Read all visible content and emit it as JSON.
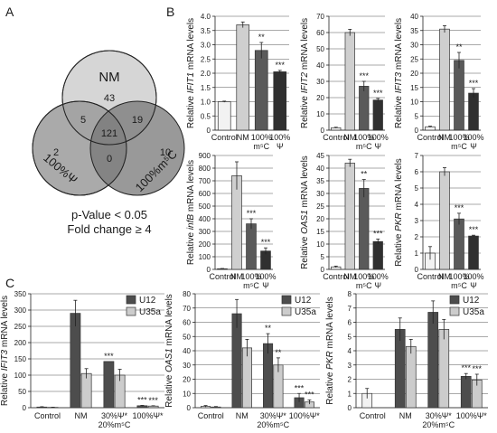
{
  "panels": {
    "A": {
      "letter": "A",
      "sets": [
        {
          "name": "NM",
          "color": "#d4d4d4"
        },
        {
          "name": "100%Ψ",
          "color": "#9a9a9a"
        },
        {
          "name": "100%m⁵C",
          "color": "#7a7a7a"
        }
      ],
      "regions": {
        "nm_only": "43",
        "nm_psi": "5",
        "nm_m5c": "19",
        "all": "121",
        "psi_only": "2",
        "psi_m5c": "0",
        "m5c_only": "10"
      },
      "caption1": "p-Value < 0.05",
      "caption2": "Fold change ≥ 4"
    },
    "B": {
      "letter": "B"
    },
    "C": {
      "letter": "C"
    }
  },
  "chart_data": [
    {
      "id": "B1",
      "type": "bar",
      "gene": "IFIT1",
      "ylabel_prefix": "Relative ",
      "ylabel_suffix": " mRNA levels",
      "categories": [
        "Control",
        "NM",
        "100% m⁵C",
        "100% Ψ"
      ],
      "values": [
        1.0,
        3.7,
        2.8,
        2.05
      ],
      "errors": [
        0.02,
        0.1,
        0.28,
        0.05
      ],
      "sig": [
        "",
        "",
        "**",
        "***"
      ],
      "ylim": [
        0,
        4.0
      ],
      "ticks": [
        0,
        0.5,
        1.0,
        1.5,
        2.0,
        2.5,
        3.0,
        3.5,
        4.0
      ],
      "tick_labels": [
        "0",
        "0.5",
        "1.0",
        "1.5",
        "2.0",
        "2.5",
        "3.0",
        "3.5",
        "4.0"
      ]
    },
    {
      "id": "B2",
      "type": "bar",
      "gene": "IFIT2",
      "ylabel_prefix": "Relative ",
      "ylabel_suffix": " mRNA levels",
      "categories": [
        "Control",
        "NM",
        "100% m⁵C",
        "100% Ψ"
      ],
      "values": [
        1.5,
        60,
        27,
        18.5
      ],
      "errors": [
        0.3,
        2,
        3,
        1
      ],
      "sig": [
        "",
        "",
        "***",
        "***"
      ],
      "ylim": [
        0,
        70
      ],
      "ticks": [
        0,
        10,
        20,
        30,
        40,
        50,
        60,
        70
      ],
      "tick_labels": [
        "0",
        "10",
        "20",
        "30",
        "40",
        "50",
        "60",
        "70"
      ]
    },
    {
      "id": "B3",
      "type": "bar",
      "gene": "IFIT3",
      "ylabel_prefix": "Relative ",
      "ylabel_suffix": " mRNA levels",
      "categories": [
        "Control",
        "NM",
        "100% m⁵C",
        "100% Ψ"
      ],
      "values": [
        1.2,
        35.5,
        24.5,
        13
      ],
      "errors": [
        0.2,
        1.2,
        2.8,
        1.6
      ],
      "sig": [
        "",
        "",
        "**",
        "***"
      ],
      "ylim": [
        0,
        40
      ],
      "ticks": [
        0,
        5,
        10,
        15,
        20,
        25,
        30,
        35,
        40
      ],
      "tick_labels": [
        "0",
        "5",
        "10",
        "15",
        "20",
        "25",
        "30",
        "35",
        "40"
      ]
    },
    {
      "id": "B4",
      "type": "bar",
      "gene": "infB",
      "ylabel_prefix": "Relative ",
      "ylabel_suffix": " mRNA levels",
      "categories": [
        "Control",
        "NM",
        "100% m⁵C",
        "100% Ψ"
      ],
      "values": [
        5,
        740,
        360,
        145
      ],
      "errors": [
        2,
        110,
        40,
        25
      ],
      "sig": [
        "",
        "",
        "***",
        "***"
      ],
      "ylim": [
        0,
        900
      ],
      "ticks": [
        0,
        100,
        200,
        300,
        400,
        500,
        600,
        700,
        800,
        900
      ],
      "tick_labels": [
        "0",
        "100",
        "200",
        "300",
        "400",
        "500",
        "600",
        "700",
        "800",
        "900"
      ]
    },
    {
      "id": "B5",
      "type": "bar",
      "gene": "OAS1",
      "ylabel_prefix": "Relative ",
      "ylabel_suffix": " mRNA levels",
      "categories": [
        "Control",
        "NM",
        "100% m⁵C",
        "100% Ψ"
      ],
      "values": [
        1,
        42,
        32,
        11
      ],
      "errors": [
        0.3,
        1.5,
        3.5,
        1
      ],
      "sig": [
        "",
        "",
        "**",
        "***"
      ],
      "ylim": [
        0,
        45
      ],
      "ticks": [
        0,
        5,
        10,
        15,
        20,
        25,
        30,
        35,
        40,
        45
      ],
      "tick_labels": [
        "0",
        "5",
        "10",
        "15",
        "20",
        "25",
        "30",
        "35",
        "40",
        "45"
      ]
    },
    {
      "id": "B6",
      "type": "bar",
      "gene": "PKR",
      "ylabel_prefix": "Relative ",
      "ylabel_suffix": " mRNA levels",
      "categories": [
        "Control",
        "NM",
        "100% m⁵C",
        "100% Ψ"
      ],
      "values": [
        1.0,
        6.0,
        3.1,
        2.05
      ],
      "errors": [
        0.4,
        0.25,
        0.35,
        0.05
      ],
      "sig": [
        "",
        "",
        "***",
        "***"
      ],
      "ylim": [
        0,
        7
      ],
      "ticks": [
        0,
        1,
        2,
        3,
        4,
        5,
        6,
        7
      ],
      "tick_labels": [
        "0",
        "1",
        "2",
        "3",
        "4",
        "5",
        "6",
        "7"
      ]
    },
    {
      "id": "C1",
      "type": "bar",
      "gene": "IFIT3",
      "ylabel_prefix": "Relative ",
      "ylabel_suffix": " mRNA levels",
      "groups": [
        "Control",
        "NM",
        "30%Ψ* 20%m⁵C",
        "100%Ψ*"
      ],
      "series": [
        {
          "name": "U12",
          "values": [
            2,
            290,
            142,
            6
          ],
          "errors": [
            1,
            40,
            0,
            1
          ],
          "sig": [
            "",
            "",
            "***",
            "***"
          ]
        },
        {
          "name": "U35a",
          "values": [
            1,
            105,
            100,
            5
          ],
          "errors": [
            0.5,
            15,
            18,
            1
          ],
          "sig": [
            "",
            "",
            "",
            "***"
          ]
        }
      ],
      "ylim": [
        0,
        350
      ],
      "ticks": [
        0,
        50,
        100,
        150,
        200,
        250,
        300,
        350
      ],
      "tick_labels": [
        "0",
        "50",
        "100",
        "150",
        "200",
        "250",
        "300",
        "350"
      ]
    },
    {
      "id": "C2",
      "type": "bar",
      "gene": "OAS1",
      "ylabel_prefix": "Relative ",
      "ylabel_suffix": " mRNA levels",
      "groups": [
        "Control",
        "NM",
        "30%Ψ* 20%m⁵C",
        "100%Ψ*"
      ],
      "series": [
        {
          "name": "U12",
          "values": [
            1,
            66,
            45,
            7
          ],
          "errors": [
            0.5,
            10,
            7,
            3
          ],
          "sig": [
            "",
            "",
            "**",
            "***"
          ]
        },
        {
          "name": "U35a",
          "values": [
            0.5,
            42,
            30,
            4
          ],
          "errors": [
            0.3,
            6,
            5,
            1.5
          ],
          "sig": [
            "",
            "",
            "**",
            "***"
          ]
        }
      ],
      "ylim": [
        0,
        80
      ],
      "ticks": [
        0,
        10,
        20,
        30,
        40,
        50,
        60,
        70,
        80
      ],
      "tick_labels": [
        "0",
        "10",
        "20",
        "30",
        "40",
        "50",
        "60",
        "70",
        "80"
      ]
    },
    {
      "id": "C3",
      "type": "bar",
      "gene": "PKR",
      "ylabel_prefix": "Relative ",
      "ylabel_suffix": " mRNA levels",
      "groups": [
        "Control",
        "NM",
        "30%Ψ* 20%m⁵C",
        "100%Ψ*"
      ],
      "series": [
        {
          "name": "U12",
          "values": [
            1,
            5.5,
            6.7,
            2.2
          ],
          "errors": [
            0.35,
            0.8,
            0.8,
            0.2
          ],
          "sig": [
            "",
            "",
            "",
            "***"
          ]
        },
        {
          "name": "U35a",
          "values": [
            0,
            4.3,
            5.5,
            1.95
          ],
          "errors": [
            0,
            0.5,
            0.7,
            0.4
          ],
          "sig": [
            "",
            "",
            "",
            "***"
          ]
        }
      ],
      "ylim": [
        0,
        8
      ],
      "ticks": [
        0,
        1,
        2,
        3,
        4,
        5,
        6,
        7,
        8
      ],
      "tick_labels": [
        "0",
        "1",
        "2",
        "3",
        "4",
        "5",
        "6",
        "7",
        "8"
      ]
    }
  ],
  "colors": {
    "control": "#f2f2f2",
    "nm": "#cfcfcf",
    "m5c": "#5a5a5a",
    "psi": "#303030",
    "u12": "#4d4d4d",
    "u35a": "#cccccc"
  }
}
